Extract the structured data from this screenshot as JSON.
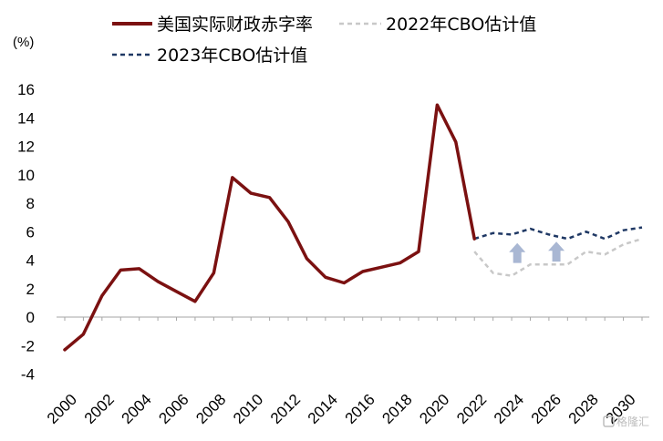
{
  "chart_data": {
    "type": "line",
    "unit_label": "(%)",
    "x": [
      2000,
      2001,
      2002,
      2003,
      2004,
      2005,
      2006,
      2007,
      2008,
      2009,
      2010,
      2011,
      2012,
      2013,
      2014,
      2015,
      2016,
      2017,
      2018,
      2019,
      2020,
      2021,
      2022,
      2023,
      2024,
      2025,
      2026,
      2027,
      2028,
      2029,
      2030,
      2031
    ],
    "x_tick_labels": [
      "2000",
      "2002",
      "2004",
      "2006",
      "2008",
      "2010",
      "2012",
      "2014",
      "2016",
      "2018",
      "2020",
      "2022",
      "2024",
      "2026",
      "2028",
      "2030"
    ],
    "y_tick_labels": [
      "-4",
      "-2",
      "0",
      "2",
      "4",
      "6",
      "8",
      "10",
      "12",
      "14",
      "16"
    ],
    "ylim": [
      -4,
      16
    ],
    "series": [
      {
        "name": "美国实际财政赤字率",
        "color": "#7b1111",
        "style": "solid",
        "points": [
          [
            2000,
            -2.3
          ],
          [
            2001,
            -1.2
          ],
          [
            2002,
            1.5
          ],
          [
            2003,
            3.3
          ],
          [
            2004,
            3.4
          ],
          [
            2005,
            2.5
          ],
          [
            2006,
            1.8
          ],
          [
            2007,
            1.1
          ],
          [
            2008,
            3.1
          ],
          [
            2009,
            9.8
          ],
          [
            2010,
            8.7
          ],
          [
            2011,
            8.4
          ],
          [
            2012,
            6.7
          ],
          [
            2013,
            4.1
          ],
          [
            2014,
            2.8
          ],
          [
            2015,
            2.4
          ],
          [
            2016,
            3.2
          ],
          [
            2017,
            3.5
          ],
          [
            2018,
            3.8
          ],
          [
            2019,
            4.6
          ],
          [
            2020,
            14.9
          ],
          [
            2021,
            12.3
          ],
          [
            2022,
            5.5
          ]
        ]
      },
      {
        "name": "2022年CBO估计值",
        "color": "#c8c8c8",
        "style": "dashed",
        "points": [
          [
            2022,
            4.6
          ],
          [
            2023,
            3.1
          ],
          [
            2024,
            2.9
          ],
          [
            2025,
            3.7
          ],
          [
            2026,
            3.7
          ],
          [
            2027,
            3.7
          ],
          [
            2028,
            4.6
          ],
          [
            2029,
            4.4
          ],
          [
            2030,
            5.1
          ],
          [
            2031,
            5.5
          ]
        ]
      },
      {
        "name": "2023年CBO估计值",
        "color": "#1f3864",
        "style": "dashed",
        "points": [
          [
            2022,
            5.5
          ],
          [
            2023,
            5.9
          ],
          [
            2024,
            5.8
          ],
          [
            2025,
            6.2
          ],
          [
            2026,
            5.8
          ],
          [
            2027,
            5.5
          ],
          [
            2028,
            6.0
          ],
          [
            2029,
            5.5
          ],
          [
            2030,
            6.1
          ],
          [
            2031,
            6.3
          ]
        ]
      }
    ],
    "annotations": [
      {
        "type": "arrow-up",
        "x": 2024.3,
        "y_from": 3.8,
        "y_to": 5.2,
        "color": "#a9b7d3"
      },
      {
        "type": "arrow-up",
        "x": 2026.4,
        "y_from": 3.9,
        "y_to": 5.3,
        "color": "#a9b7d3"
      }
    ],
    "legend_placement": "top",
    "grid": false
  },
  "watermark": {
    "icon": "logo-icon",
    "text": "格隆汇"
  }
}
